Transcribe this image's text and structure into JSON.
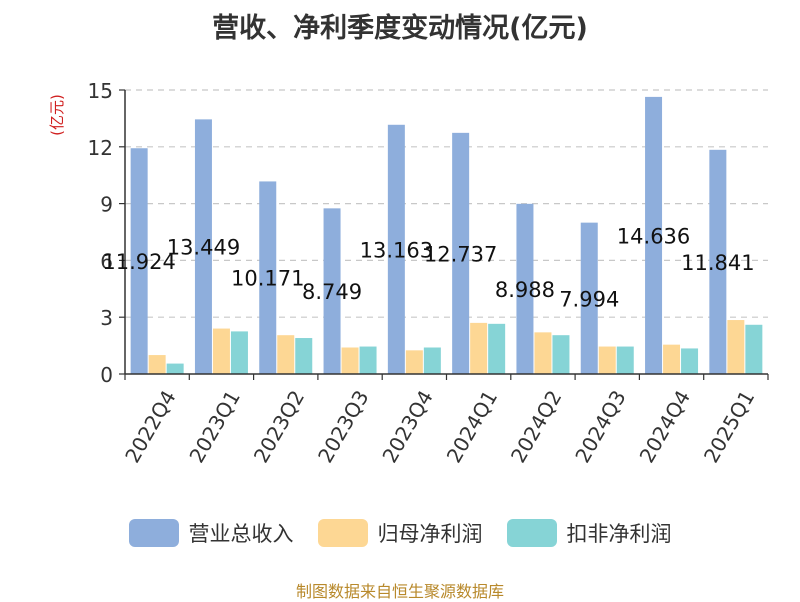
{
  "chart_data": {
    "type": "bar",
    "title": "营收、净利季度变动情况(亿元)",
    "ylabel": "(亿元)",
    "xlabel": "",
    "ylim": [
      0,
      15
    ],
    "yticks": [
      0,
      3,
      6,
      9,
      12,
      15
    ],
    "grid": true,
    "legend_position": "bottom",
    "categories": [
      "2022Q4",
      "2023Q1",
      "2023Q2",
      "2023Q3",
      "2023Q4",
      "2024Q1",
      "2024Q2",
      "2024Q3",
      "2024Q4",
      "2025Q1"
    ],
    "series": [
      {
        "name": "营业总收入",
        "color": "#8eaedc",
        "values": [
          11.924,
          13.449,
          10.171,
          8.749,
          13.163,
          12.737,
          8.988,
          7.994,
          14.636,
          11.841
        ],
        "data_labels": [
          "11.924",
          "13.449",
          "10.171",
          "8.749",
          "13.163",
          "12.737",
          "8.988",
          "7.994",
          "14.636",
          "11.841"
        ]
      },
      {
        "name": "归母净利润",
        "color": "#fdd794",
        "values": [
          1.0,
          2.4,
          2.05,
          1.4,
          1.25,
          2.7,
          2.2,
          1.45,
          1.55,
          2.85
        ]
      },
      {
        "name": "扣非净利润",
        "color": "#86d4d6",
        "values": [
          0.55,
          2.25,
          1.9,
          1.45,
          1.4,
          2.65,
          2.05,
          1.45,
          1.35,
          2.6
        ]
      }
    ],
    "source": "制图数据来自恒生聚源数据库"
  }
}
